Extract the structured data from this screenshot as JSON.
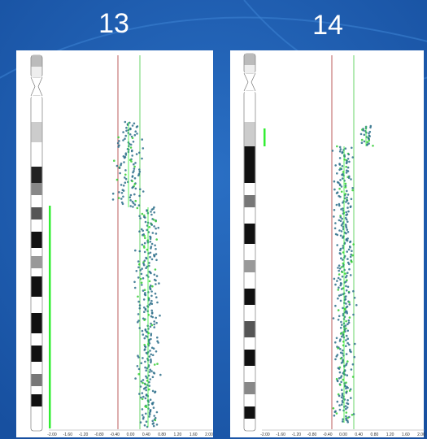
{
  "panels": [
    {
      "title": "13",
      "axis_ticks": [
        "-2.00",
        "-1.60",
        "-1.20",
        "-0.80",
        "-0.40",
        "0.00",
        "0.40",
        "0.80",
        "1.20",
        "1.60",
        "2.00"
      ]
    },
    {
      "title": "14",
      "axis_ticks": [
        "-2.00",
        "-1.60",
        "-1.20",
        "-0.80",
        "-0.40",
        "0.00",
        "0.40",
        "0.80",
        "1.20",
        "1.60",
        "2.00"
      ]
    }
  ]
}
